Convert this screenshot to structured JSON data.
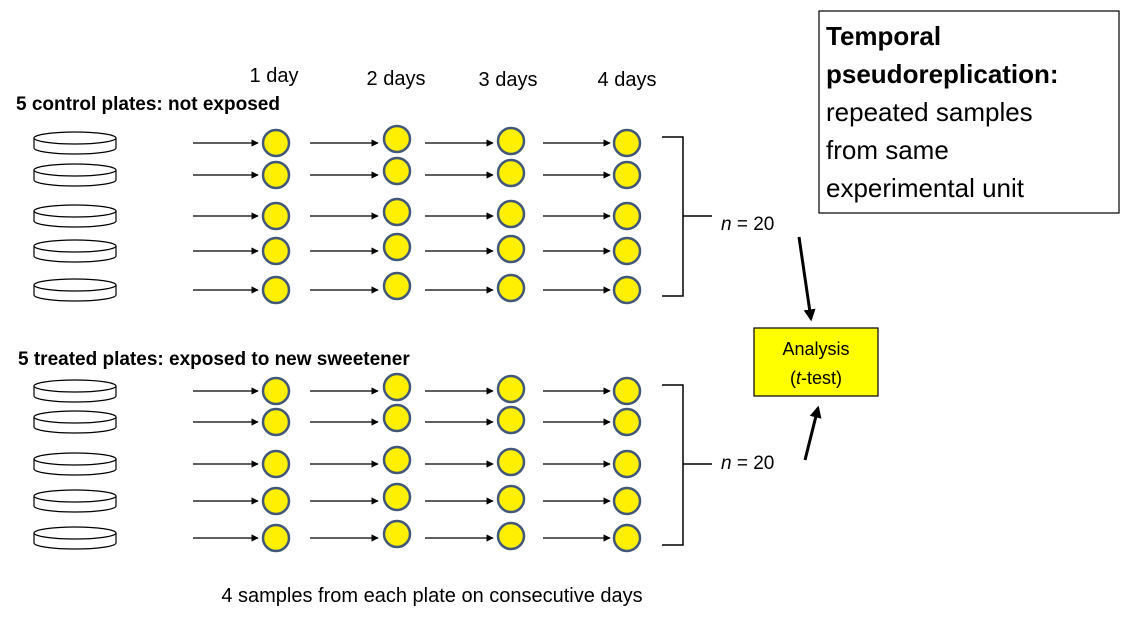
{
  "day_labels": [
    "1 day",
    "2 days",
    "3 days",
    "4 days"
  ],
  "groups": [
    {
      "label": "5 control plates: not exposed",
      "plates": 5,
      "n_prefix": "n",
      "n_value": " = 20"
    },
    {
      "label": "5 treated plates: exposed to new sweetener",
      "plates": 5,
      "n_prefix": "n",
      "n_value": " = 20"
    }
  ],
  "callout": {
    "title_line1": "Temporal",
    "title_line2": "pseudoreplication:",
    "body_lines": [
      "repeated samples",
      "from same",
      "experimental unit"
    ]
  },
  "analysis": {
    "line1": "Analysis",
    "line2_open": "(",
    "line2_italic": "t",
    "line2_rest": "-test)"
  },
  "footer": "4 samples from each plate on consecutive days",
  "colors": {
    "sample_fill": "#FFEF00",
    "sample_stroke": "#41587A",
    "analysis_fill": "#FFFF00"
  }
}
